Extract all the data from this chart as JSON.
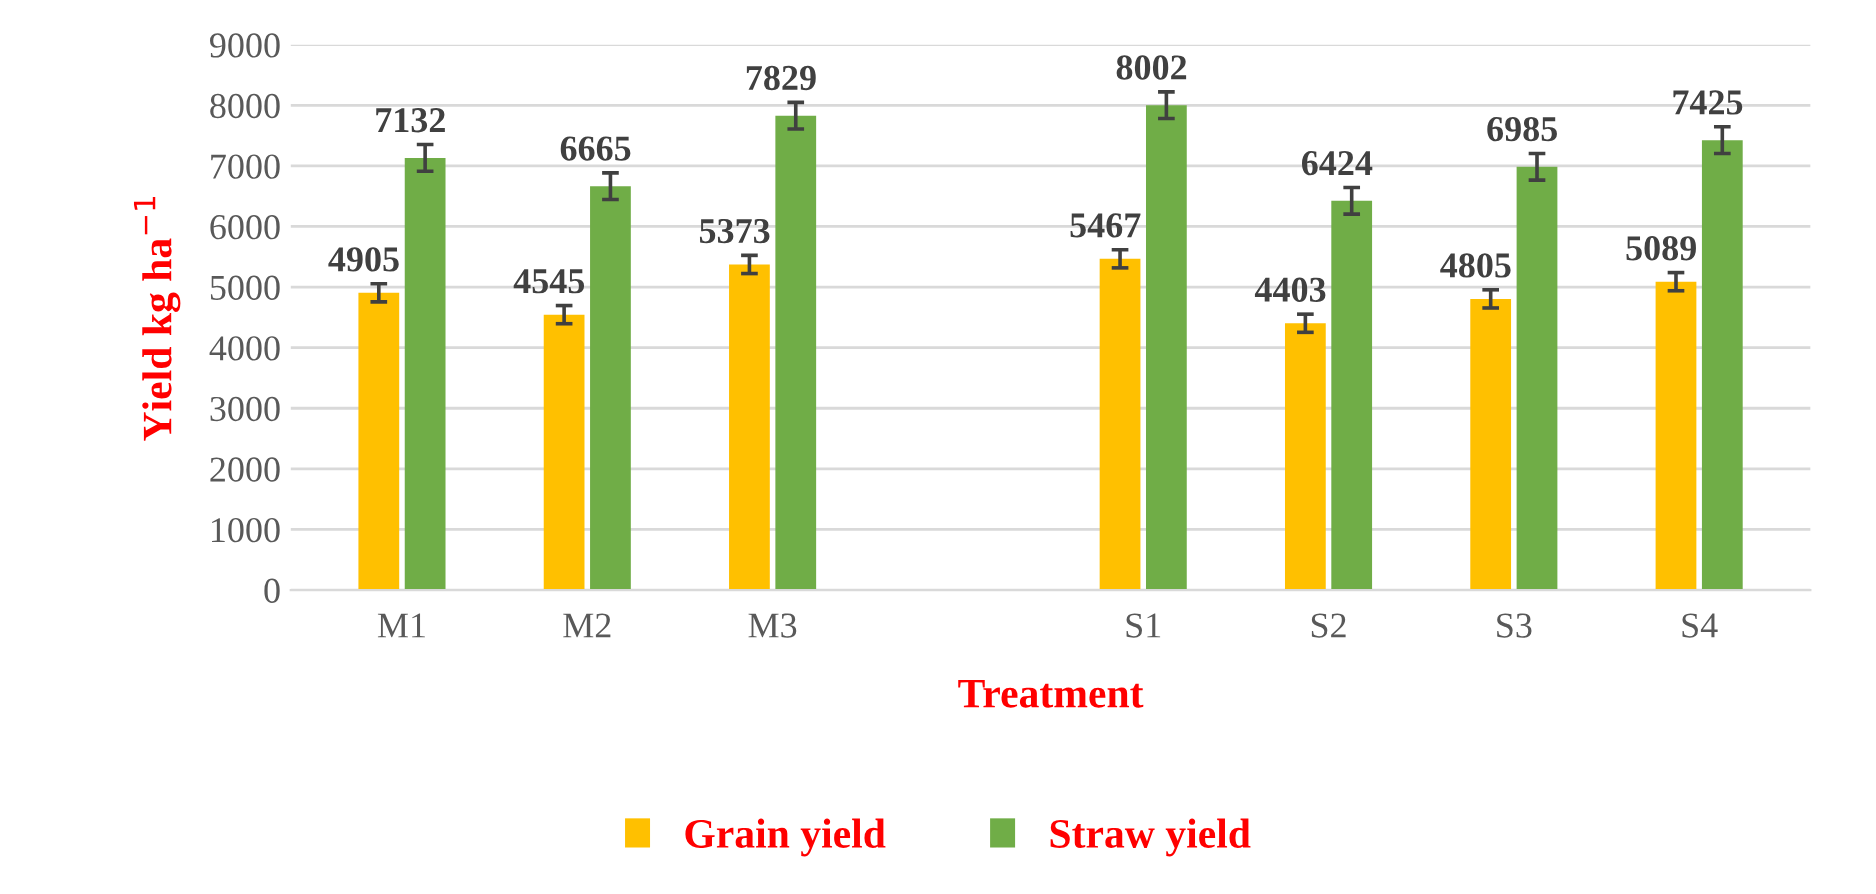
{
  "chart_data": {
    "type": "bar",
    "xlabel": "Treatment",
    "ylabel": "Yield kg ha$^{−1}$",
    "categories": [
      "M1",
      "M2",
      "M3",
      null,
      "S1",
      "S2",
      "S3",
      "S4"
    ],
    "series": [
      {
        "name": "Grain yield",
        "color": "#ffc000",
        "values": [
          4905,
          4545,
          5373,
          null,
          5467,
          4403,
          4805,
          5089
        ],
        "errors": [
          150,
          150,
          150,
          null,
          150,
          150,
          150,
          150
        ]
      },
      {
        "name": "Straw yield",
        "color": "#70ad47",
        "values": [
          7132,
          6665,
          7829,
          null,
          8002,
          6424,
          6985,
          7425
        ],
        "errors": [
          220,
          220,
          220,
          null,
          220,
          220,
          220,
          220
        ]
      }
    ],
    "ylim": [
      0,
      9000
    ],
    "yticks": [
      0,
      1000,
      2000,
      3000,
      4000,
      5000,
      6000,
      7000,
      8000,
      9000
    ],
    "grid": "y",
    "legend": "bottom",
    "data_labels": true
  }
}
